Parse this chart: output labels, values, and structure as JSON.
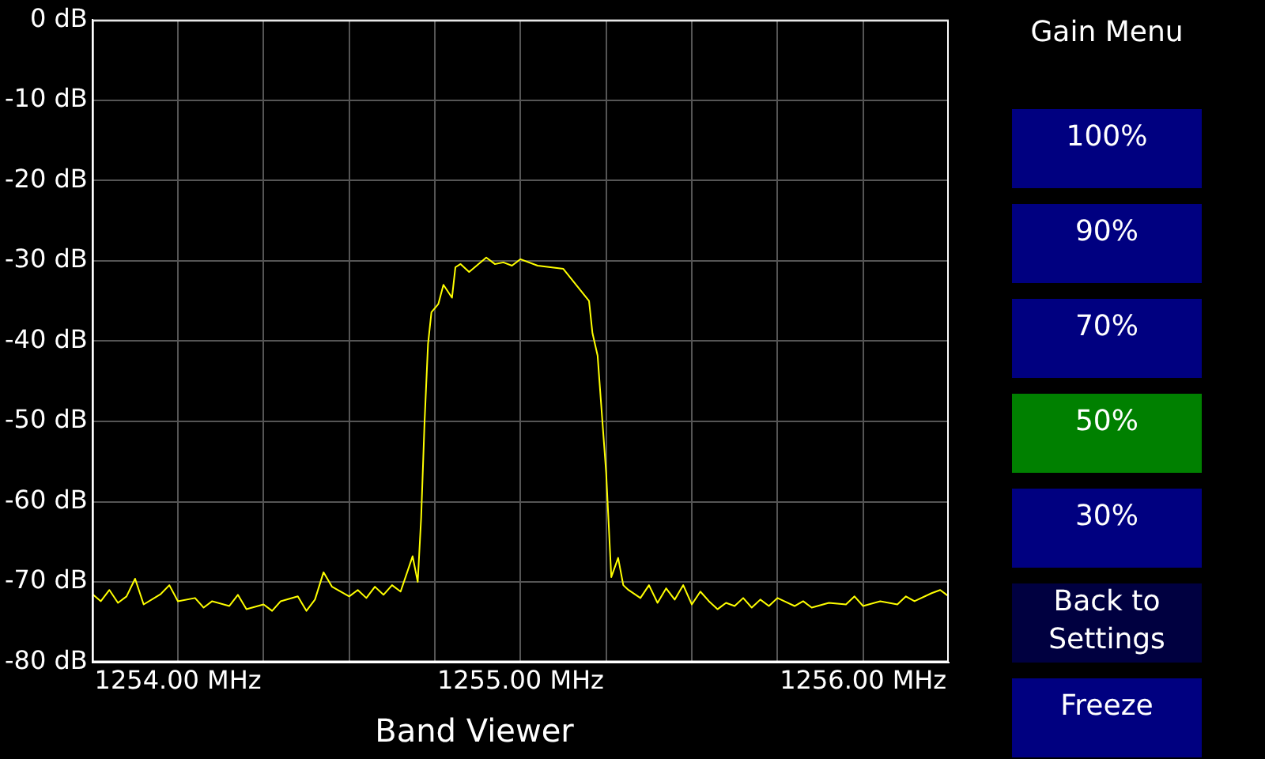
{
  "chart_data": {
    "type": "line",
    "title": "Band Viewer",
    "x": [
      1253.75,
      1253.775,
      1253.8,
      1253.825,
      1253.85,
      1253.875,
      1253.9,
      1253.95,
      1253.975,
      1254.0,
      1254.05,
      1254.075,
      1254.1,
      1254.15,
      1254.175,
      1254.2,
      1254.25,
      1254.275,
      1254.3,
      1254.35,
      1254.375,
      1254.4,
      1254.425,
      1254.45,
      1254.5,
      1254.525,
      1254.55,
      1254.575,
      1254.6,
      1254.625,
      1254.65,
      1254.685,
      1254.7,
      1254.71,
      1254.72,
      1254.73,
      1254.74,
      1254.76,
      1254.775,
      1254.8,
      1254.81,
      1254.825,
      1254.85,
      1254.9,
      1254.925,
      1254.95,
      1254.975,
      1255.0,
      1255.05,
      1255.125,
      1255.2,
      1255.21,
      1255.225,
      1255.25,
      1255.265,
      1255.285,
      1255.3,
      1255.315,
      1255.35,
      1255.375,
      1255.4,
      1255.425,
      1255.45,
      1255.475,
      1255.5,
      1255.525,
      1255.55,
      1255.575,
      1255.6,
      1255.625,
      1255.65,
      1255.675,
      1255.7,
      1255.725,
      1255.75,
      1255.8,
      1255.825,
      1255.85,
      1255.9,
      1255.95,
      1255.975,
      1256.0,
      1256.05,
      1256.1,
      1256.125,
      1256.15,
      1256.2,
      1256.225,
      1256.25
    ],
    "series": [
      {
        "color": "#ffff00",
        "values": [
          -71.5,
          -72.4,
          -71.0,
          -72.6,
          -71.8,
          -69.6,
          -72.8,
          -71.5,
          -70.4,
          -72.4,
          -72.0,
          -73.2,
          -72.4,
          -73.0,
          -71.6,
          -73.4,
          -72.8,
          -73.6,
          -72.4,
          -71.8,
          -73.6,
          -72.2,
          -68.8,
          -70.6,
          -71.8,
          -71.0,
          -72.0,
          -70.6,
          -71.6,
          -70.4,
          -71.2,
          -66.8,
          -70.0,
          -62,
          -50,
          -40.4,
          -36.4,
          -35.4,
          -33.0,
          -34.6,
          -30.8,
          -30.4,
          -31.4,
          -29.6,
          -30.4,
          -30.2,
          -30.6,
          -29.8,
          -30.6,
          -31.0,
          -35.0,
          -39.0,
          -41.8,
          -56.4,
          -69.4,
          -67.0,
          -70.4,
          -71.0,
          -72.0,
          -70.4,
          -72.6,
          -70.8,
          -72.2,
          -70.4,
          -72.8,
          -71.2,
          -72.4,
          -73.4,
          -72.6,
          -73.0,
          -72.0,
          -73.2,
          -72.2,
          -73.0,
          -72.0,
          -73.0,
          -72.4,
          -73.2,
          -72.6,
          -72.8,
          -71.8,
          -73.0,
          -72.4,
          -72.8,
          -71.8,
          -72.4,
          -71.4,
          -71.0,
          -71.8
        ]
      }
    ],
    "xlim": [
      1253.75,
      1256.25
    ],
    "xticks": [
      {
        "value": 1254,
        "label": "1254.00 MHz"
      },
      {
        "value": 1254.25,
        "label": null
      },
      {
        "value": 1254.5,
        "label": null
      },
      {
        "value": 1254.75,
        "label": null
      },
      {
        "value": 1255,
        "label": "1255.00 MHz"
      },
      {
        "value": 1255.25,
        "label": null
      },
      {
        "value": 1255.5,
        "label": null
      },
      {
        "value": 1255.75,
        "label": null
      },
      {
        "value": 1256,
        "label": "1256.00 MHz"
      }
    ],
    "ylim": [
      -80,
      0
    ],
    "yticks": [
      {
        "value": 0,
        "label": "0 dB"
      },
      {
        "value": -10,
        "label": "-10 dB"
      },
      {
        "value": -20,
        "label": "-20 dB"
      },
      {
        "value": -30,
        "label": "-30 dB"
      },
      {
        "value": -40,
        "label": "-40 dB"
      },
      {
        "value": -50,
        "label": "-50 dB"
      },
      {
        "value": -60,
        "label": "-60 dB"
      },
      {
        "value": -70,
        "label": "-70 dB"
      },
      {
        "value": -80,
        "label": "-80 dB"
      }
    ],
    "grid": true,
    "legend": false,
    "marker": "none",
    "line_style": "solid",
    "annotations": [
      "Gain Menu",
      "100%",
      "90%",
      "70%",
      "50%",
      "30%",
      "Back to Settings",
      "Freeze"
    ]
  }
}
